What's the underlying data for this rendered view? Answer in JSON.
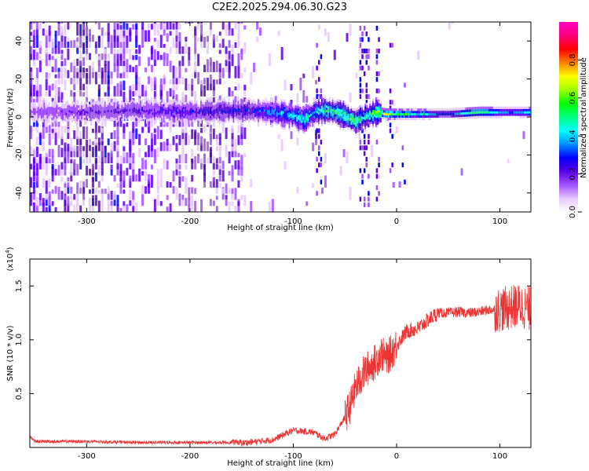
{
  "title": "C2E2.2025.294.06.30.G23",
  "chart_data": [
    {
      "type": "heatmap",
      "xlabel": "Height of straight line (km)",
      "ylabel": "Frequency (Hz)",
      "xlim": [
        -355,
        130
      ],
      "ylim": [
        -50,
        50
      ],
      "xticks": [
        -300,
        -200,
        -100,
        0,
        100
      ],
      "yticks": [
        -40,
        -20,
        0,
        20,
        40
      ],
      "colorbar": {
        "label": "Normalized spectral amplitude",
        "range": [
          0.0,
          1.0
        ],
        "ticks": [
          "0.0",
          "0.2",
          "0.4",
          "0.6",
          "0.8"
        ],
        "colors": [
          "#ffffff",
          "#e6c8ff",
          "#a050ff",
          "#5a00e6",
          "#0000ff",
          "#0090ff",
          "#00ffff",
          "#00ff80",
          "#00ff00",
          "#a0ff00",
          "#ffff00",
          "#ff8000",
          "#ff0000",
          "#ff0080",
          "#ff00c0"
        ]
      },
      "trace": {
        "x": [
          -355,
          -300,
          -250,
          -200,
          -150,
          -120,
          -100,
          -90,
          -80,
          -70,
          -60,
          -50,
          -40,
          -30,
          -20,
          -10,
          0,
          20,
          50,
          80,
          130
        ],
        "freq": [
          2,
          2,
          3,
          2,
          3,
          2,
          0,
          -2,
          2,
          3,
          2,
          0,
          -3,
          0,
          2,
          1,
          1,
          1,
          1,
          2,
          2
        ],
        "amplitude": [
          0.15,
          0.2,
          0.22,
          0.25,
          0.28,
          0.35,
          0.42,
          0.45,
          0.4,
          0.5,
          0.52,
          0.55,
          0.55,
          0.45,
          0.6,
          0.65,
          0.6,
          0.45,
          0.5,
          0.55,
          0.55
        ]
      }
    },
    {
      "type": "line",
      "xlabel": "Height of straight line (km)",
      "ylabel": "SNR (10 * v/v)",
      "yscale_label": "(x10",
      "yscale_exp": "4",
      "color": "#ee3333",
      "xlim": [
        -355,
        130
      ],
      "ylim": [
        0,
        1.75
      ],
      "xticks": [
        -300,
        -200,
        -100,
        0,
        100
      ],
      "yticks": [
        "0.5",
        "1.0",
        "1.5"
      ],
      "x": [
        -355,
        -350,
        -300,
        -250,
        -200,
        -150,
        -120,
        -100,
        -90,
        -80,
        -70,
        -60,
        -50,
        -45,
        -40,
        -30,
        -20,
        -15,
        -10,
        0,
        10,
        20,
        30,
        40,
        50,
        60,
        70,
        80,
        90,
        100,
        110,
        120,
        130
      ],
      "y": [
        0.1,
        0.05,
        0.05,
        0.04,
        0.04,
        0.04,
        0.07,
        0.16,
        0.15,
        0.14,
        0.08,
        0.12,
        0.28,
        0.38,
        0.55,
        0.72,
        0.8,
        0.88,
        0.82,
        0.95,
        1.08,
        1.1,
        1.18,
        1.25,
        1.25,
        1.26,
        1.25,
        1.26,
        1.28,
        1.28,
        1.3,
        1.32,
        1.28
      ]
    }
  ]
}
